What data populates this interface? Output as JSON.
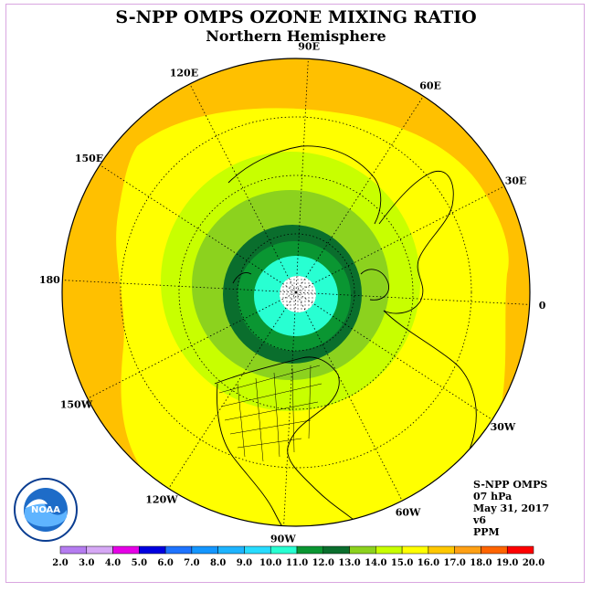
{
  "title": "S-NPP OMPS OZONE MIXING RATIO",
  "subtitle": "Northern Hemisphere",
  "longitude_labels": [
    "90E",
    "60E",
    "30E",
    "0",
    "30W",
    "60W",
    "90W",
    "120W",
    "150W",
    "180",
    "150E",
    "120E"
  ],
  "info": {
    "instrument": "S-NPP OMPS",
    "pressure": "07 hPa",
    "date": "May 31, 2017",
    "version": "v6",
    "units": "PPM"
  },
  "logo": {
    "text": "NOAA",
    "ring_text": "NATIONAL OCEANIC AND ATMOSPHERIC ADMINISTRATION · U.S. DEPARTMENT OF COMMERCE"
  },
  "colorbar": {
    "labels": [
      "2.0",
      "3.0",
      "4.0",
      "5.0",
      "6.0",
      "7.0",
      "8.0",
      "9.0",
      "10.0",
      "11.0",
      "12.0",
      "13.0",
      "14.0",
      "15.0",
      "16.0",
      "17.0",
      "18.0",
      "19.0",
      "20.0"
    ],
    "colors": [
      "#b57cf0",
      "#d6a8f5",
      "#e600e6",
      "#0000e0",
      "#1e73ff",
      "#1496ff",
      "#1eb4ff",
      "#28dcff",
      "#28ffd2",
      "#0a9632",
      "#0a6e2d",
      "#8cd21e",
      "#c8ff00",
      "#ffff00",
      "#ffc800",
      "#ffa014",
      "#ff6400",
      "#ff0000",
      "#8b5a3c"
    ]
  },
  "field_colors": {
    "outer": "#ffc000",
    "band_15": "#ffff00",
    "band_14": "#c8ff00",
    "band_13": "#8cd21e",
    "band_12": "#0a6e2d",
    "band_11": "#0a9632",
    "band_10": "#28ffd2",
    "band_9": "#28ffff",
    "pole": "#ffffff"
  }
}
